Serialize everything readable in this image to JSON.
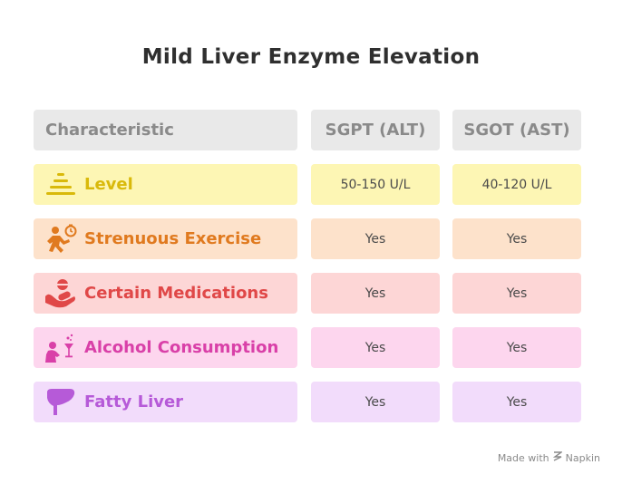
{
  "title": "Mild Liver Enzyme Elevation",
  "headers": [
    "Characteristic",
    "SGPT (ALT)",
    "SGOT (AST)"
  ],
  "rows": [
    {
      "label": "Level",
      "sgpt": "50-150 U/L",
      "sgot": "40-120 U/L",
      "icon": "level-bars-icon",
      "bg": "#fdf6b4",
      "fg": "#d9b90a"
    },
    {
      "label": "Strenuous Exercise",
      "sgpt": "Yes",
      "sgot": "Yes",
      "icon": "running-person-icon",
      "bg": "#fde2cb",
      "fg": "#e07a1f"
    },
    {
      "label": "Certain Medications",
      "sgpt": "Yes",
      "sgot": "Yes",
      "icon": "pills-hand-icon",
      "bg": "#fdd6d6",
      "fg": "#e04848"
    },
    {
      "label": "Alcohol Consumption",
      "sgpt": "Yes",
      "sgot": "Yes",
      "icon": "drinking-person-icon",
      "bg": "#fdd6ee",
      "fg": "#d940a8"
    },
    {
      "label": "Fatty Liver",
      "sgpt": "Yes",
      "sgot": "Yes",
      "icon": "liver-icon",
      "bg": "#f2dcfb",
      "fg": "#b65ad8"
    }
  ],
  "footer": {
    "made_with": "Made with",
    "brand": "Napkin"
  }
}
